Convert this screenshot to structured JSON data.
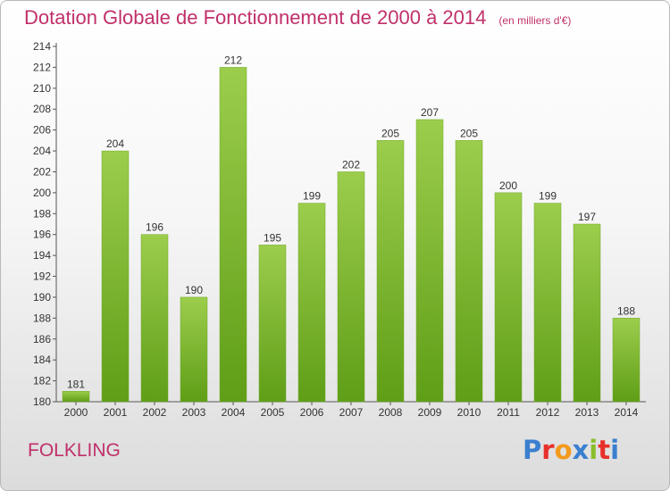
{
  "header": {
    "title": "Dotation Globale de Fonctionnement de 2000 à 2014",
    "unit": "(en milliers d'€)"
  },
  "footer": {
    "location": "FOLKLING",
    "brand": "Proxiti"
  },
  "colors": {
    "title": "#c0306a",
    "bar_light": "#9ccd4c",
    "bar_dark": "#5f9e17",
    "brand_letters": [
      "#3a7fd0",
      "#e8302a",
      "#f39a1c",
      "#3a7fd0",
      "#8cbe2c",
      "#e8302a",
      "#3a7fd0"
    ]
  },
  "chart_data": {
    "type": "bar",
    "categories": [
      "2000",
      "2001",
      "2002",
      "2003",
      "2004",
      "2005",
      "2006",
      "2007",
      "2008",
      "2009",
      "2010",
      "2011",
      "2012",
      "2013",
      "2014"
    ],
    "values": [
      181,
      204,
      196,
      190,
      212,
      195,
      199,
      202,
      205,
      207,
      205,
      200,
      199,
      197,
      188
    ],
    "data_labels": [
      "181",
      "204",
      "196",
      "190",
      "212",
      "195",
      "199",
      "202",
      "205",
      "207",
      "205",
      "200",
      "199",
      "197",
      "188"
    ],
    "yticks": [
      "180",
      "182",
      "184",
      "186",
      "188",
      "190",
      "192",
      "194",
      "196",
      "198",
      "200",
      "202",
      "204",
      "206",
      "208",
      "210",
      "212",
      "214"
    ],
    "ylim": [
      180,
      214
    ],
    "grid": false,
    "legend": "none"
  }
}
